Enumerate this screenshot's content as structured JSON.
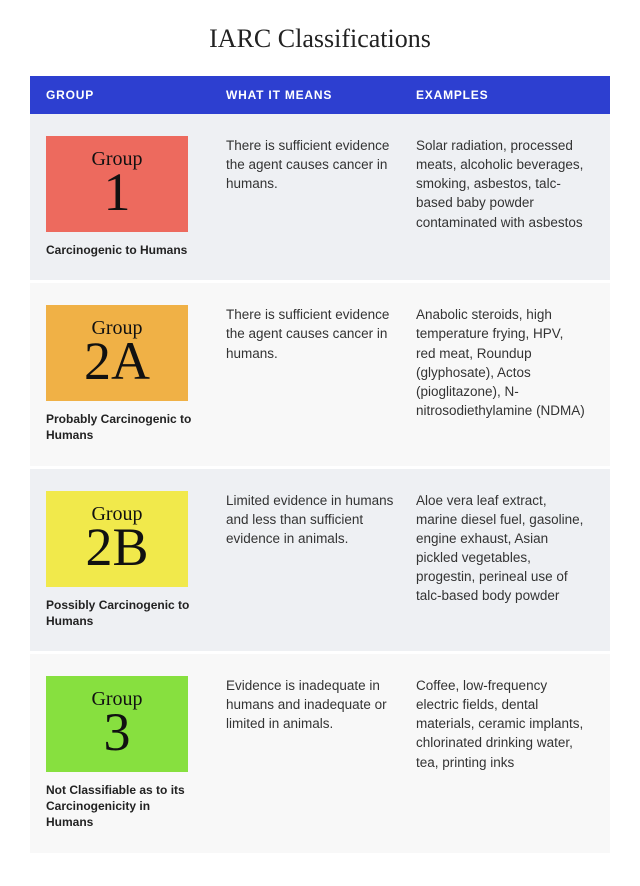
{
  "title": "IARC Classifications",
  "columns": {
    "group": "GROUP",
    "meaning": "WHAT IT MEANS",
    "examples": "EXAMPLES"
  },
  "header_bg": "#2d3fd0",
  "row_bg_even": "#eef0f3",
  "row_bg_odd": "#f8f8f8",
  "badge_word": "Group",
  "rows": [
    {
      "code": "1",
      "label": "Carcinogenic to Humans",
      "meaning": "There is sufficient evidence the agent causes cancer in humans.",
      "examples": "Solar radiation, processed meats, alcoholic beverages, smoking, asbestos, talc-based baby powder contaminated with asbestos",
      "badge_color": "#ed6a5e"
    },
    {
      "code": "2A",
      "label": "Probably Carcinogenic to Humans",
      "meaning": "There is sufficient evidence the agent causes cancer in humans.",
      "examples": "Anabolic steroids, high temperature frying, HPV, red meat, Roundup (glyphosate), Actos (pioglitazone), N-nitrosodiethylamine (NDMA)",
      "badge_color": "#f0b146"
    },
    {
      "code": "2B",
      "label": "Possibly Carcinogenic to Humans",
      "meaning": "Limited evidence in humans and less than sufficient evidence in animals.",
      "examples": "Aloe vera leaf extract, marine diesel fuel, gasoline, engine exhaust, Asian pickled vegetables, progestin, perineal use of talc-based body powder",
      "badge_color": "#f1e94b"
    },
    {
      "code": "3",
      "label": "Not Classifiable as to its Carcinogenicity in Humans",
      "meaning": "Evidence is inadequate in humans and inadequate or limited in animals.",
      "examples": "Coffee, low-frequency electric fields, dental materials, ceramic implants, chlorinated drinking water, tea, printing inks",
      "badge_color": "#87e03f"
    }
  ]
}
